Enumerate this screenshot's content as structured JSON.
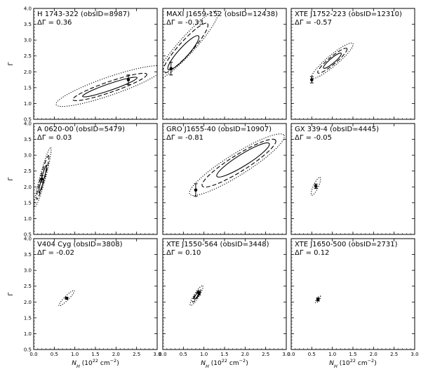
{
  "chart_data": {
    "type": "scatter",
    "layout": "3x3 grid of contour panels",
    "x_axis": {
      "label_main": "N",
      "label_sub": "H",
      "label_units": "(10",
      "label_exp": "22",
      "label_units2": "cm",
      "label_exp2": "−2",
      "label_close": ")",
      "range": [
        0.0,
        3.0
      ],
      "ticks": [
        "0.0",
        "0.5",
        "1.0",
        "1.5",
        "2.0",
        "2.5",
        "3.0"
      ]
    },
    "y_axis": {
      "label": "Γ",
      "range": [
        0.5,
        4.0
      ],
      "ticks": [
        "0.5",
        "1.0",
        "1.5",
        "2.0",
        "2.5",
        "3.0",
        "3.5",
        "4.0"
      ]
    },
    "contour_styles": [
      "solid",
      "dashed",
      "dotted"
    ],
    "panels": [
      {
        "name": "H 1743-322 (obsID=8987)",
        "delta": "ΔΓ = 0.36",
        "point": {
          "x": 2.3,
          "y": 1.75,
          "yerr": 0.15
        },
        "contours": [
          {
            "cx": 1.85,
            "cy": 1.52,
            "rx": 0.7,
            "ry": 0.08,
            "angle": 19
          },
          {
            "cx": 1.85,
            "cy": 1.52,
            "rx": 0.95,
            "ry": 0.13,
            "angle": 19
          },
          {
            "cx": 1.85,
            "cy": 1.55,
            "rx": 1.38,
            "ry": 0.22,
            "angle": 19
          }
        ]
      },
      {
        "name": "MAXI J1659-152 (obsID=12438)",
        "delta": "ΔΓ = -0.33",
        "point": {
          "x": 0.2,
          "y": 2.1,
          "yerr": 0.2
        },
        "contours": [
          {
            "cx": 0.5,
            "cy": 2.6,
            "rx": 0.55,
            "ry": 0.12,
            "angle": 48
          },
          {
            "cx": 0.55,
            "cy": 2.75,
            "rx": 0.8,
            "ry": 0.16,
            "angle": 48
          },
          {
            "cx": 0.6,
            "cy": 2.85,
            "rx": 1.1,
            "ry": 0.2,
            "angle": 48
          }
        ]
      },
      {
        "name": "XTE J1752-223 (obsID=12310)",
        "delta": "ΔΓ = -0.57",
        "point": {
          "x": 0.5,
          "y": 1.75,
          "yerr": 0.1
        },
        "contours": [
          {
            "cx": 1.0,
            "cy": 2.35,
            "rx": 0.28,
            "ry": 0.06,
            "angle": 40
          },
          {
            "cx": 1.0,
            "cy": 2.35,
            "rx": 0.46,
            "ry": 0.09,
            "angle": 40
          },
          {
            "cx": 1.0,
            "cy": 2.35,
            "rx": 0.65,
            "ry": 0.13,
            "angle": 40
          }
        ]
      },
      {
        "name": "A 0620-00 (obsID=5479)",
        "delta": "ΔΓ = 0.03",
        "point": {
          "x": 0.2,
          "y": 2.25,
          "yerr": 0.1
        },
        "contours": [
          {
            "cx": 0.22,
            "cy": 2.25,
            "rx": 0.35,
            "ry": 0.03,
            "angle": 75
          },
          {
            "cx": 0.22,
            "cy": 2.3,
            "rx": 0.55,
            "ry": 0.05,
            "angle": 75
          },
          {
            "cx": 0.22,
            "cy": 2.3,
            "rx": 0.75,
            "ry": 0.07,
            "angle": 75
          }
        ]
      },
      {
        "name": "GRO J1655-40 (obsID=10907)",
        "delta": "ΔΓ = -0.81",
        "point": {
          "x": 0.8,
          "y": 1.9,
          "yerr": 0.2
        },
        "contours": [
          {
            "cx": 1.95,
            "cy": 2.85,
            "rx": 0.75,
            "ry": 0.14,
            "angle": 32
          },
          {
            "cx": 1.85,
            "cy": 2.75,
            "rx": 1.05,
            "ry": 0.2,
            "angle": 32
          },
          {
            "cx": 1.8,
            "cy": 2.7,
            "rx": 1.35,
            "ry": 0.26,
            "angle": 32
          }
        ]
      },
      {
        "name": "GX 339-4 (obsID=4445)",
        "delta": "ΔΓ = -0.05",
        "point": {
          "x": 0.6,
          "y": 2.02,
          "yerr": 0.07
        },
        "contours": [
          {
            "cx": 0.6,
            "cy": 2.02,
            "rx": 0.24,
            "ry": 0.06,
            "angle": 65
          }
        ]
      },
      {
        "name": "V404 Cyg (obsID=3808)",
        "delta": "ΔΓ = -0.02",
        "point": {
          "x": 0.8,
          "y": 2.12,
          "yerr": 0.03
        },
        "contours": [
          {
            "cx": 0.8,
            "cy": 2.12,
            "rx": 0.26,
            "ry": 0.05,
            "angle": 45
          }
        ]
      },
      {
        "name": "XTE J1550-564 (obsID=3448)",
        "delta": "ΔΓ = 0.10",
        "point": {
          "x": 0.88,
          "y": 2.28,
          "yerr": 0.06
        },
        "contours": [
          {
            "cx": 0.82,
            "cy": 2.2,
            "rx": 0.1,
            "ry": 0.025,
            "angle": 58
          },
          {
            "cx": 0.82,
            "cy": 2.2,
            "rx": 0.18,
            "ry": 0.04,
            "angle": 58
          },
          {
            "cx": 0.82,
            "cy": 2.2,
            "rx": 0.28,
            "ry": 0.06,
            "angle": 58
          }
        ]
      },
      {
        "name": "XTE J1650-500 (obsID=2731)",
        "delta": "ΔΓ = 0.12",
        "point": {
          "x": 0.65,
          "y": 2.08,
          "yerr": 0.05
        },
        "contours": [
          {
            "cx": 0.65,
            "cy": 2.08,
            "rx": 0.1,
            "ry": 0.035,
            "angle": 55
          }
        ]
      }
    ]
  }
}
